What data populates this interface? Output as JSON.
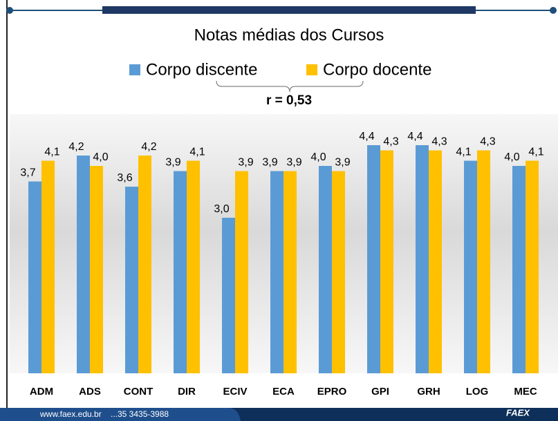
{
  "chart_data": {
    "type": "bar",
    "title": "Notas médias dos Cursos",
    "annotation": "r = 0,53",
    "categories": [
      "ADM",
      "ADS",
      "CONT",
      "DIR",
      "ECIV",
      "ECA",
      "EPRO",
      "GPI",
      "GRH",
      "LOG",
      "MEC"
    ],
    "series": [
      {
        "name": "Corpo discente",
        "color": "#5b9bd5",
        "values": [
          3.7,
          4.2,
          3.6,
          3.9,
          3.0,
          3.9,
          4.0,
          4.4,
          4.4,
          4.1,
          4.0
        ],
        "value_labels": [
          "3,7",
          "4,2",
          "3,6",
          "3,9",
          "3,0",
          "3,9",
          "4,0",
          "4,4",
          "4,4",
          "4,1",
          "4,0"
        ]
      },
      {
        "name": "Corpo docente",
        "color": "#ffc000",
        "values": [
          4.1,
          4.0,
          4.2,
          4.1,
          3.9,
          3.9,
          3.9,
          4.3,
          4.3,
          4.3,
          4.1
        ],
        "value_labels": [
          "4,1",
          "4,0",
          "4,2",
          "4,1",
          "3,9",
          "3,9",
          "3,9",
          "4,3",
          "4,3",
          "4,3",
          "4,1"
        ]
      }
    ],
    "ylim": [
      0,
      5
    ],
    "legend": "top"
  },
  "footer": {
    "site": "www.faex.edu.br",
    "phone": "...35 3435-3988",
    "logo": "FAEX"
  }
}
